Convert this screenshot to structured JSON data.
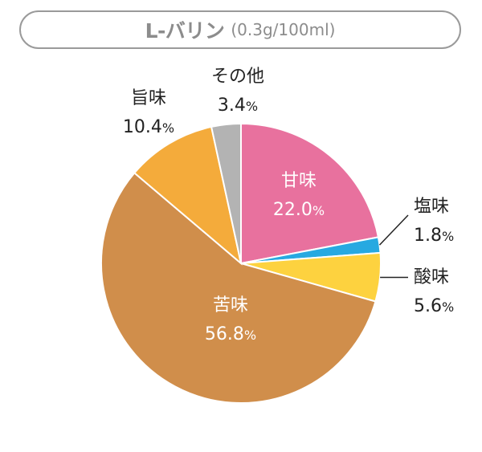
{
  "title": {
    "main": "L-バリン",
    "sub": "(0.3g/100ml)"
  },
  "chart_data": {
    "type": "pie",
    "start_angle_deg": 0,
    "direction": "clockwise",
    "slices": [
      {
        "label": "甘味",
        "value": 22.0,
        "value_text": "22.0",
        "color": "#e8719e",
        "label_pos": "inside"
      },
      {
        "label": "塩味",
        "value": 1.8,
        "value_text": "1.8",
        "color": "#27a9e1",
        "label_pos": "outside-right"
      },
      {
        "label": "酸味",
        "value": 5.6,
        "value_text": "5.6",
        "color": "#fdd23f",
        "label_pos": "outside-right"
      },
      {
        "label": "苦味",
        "value": 56.8,
        "value_text": "56.8",
        "color": "#d08e4b",
        "label_pos": "inside"
      },
      {
        "label": "旨味",
        "value": 10.4,
        "value_text": "10.4",
        "color": "#f4ab3b",
        "label_pos": "outside-top-left"
      },
      {
        "label": "その他",
        "value": 3.4,
        "value_text": "3.4",
        "color": "#b3b3b3",
        "label_pos": "outside-top"
      }
    ],
    "unit": "%"
  }
}
